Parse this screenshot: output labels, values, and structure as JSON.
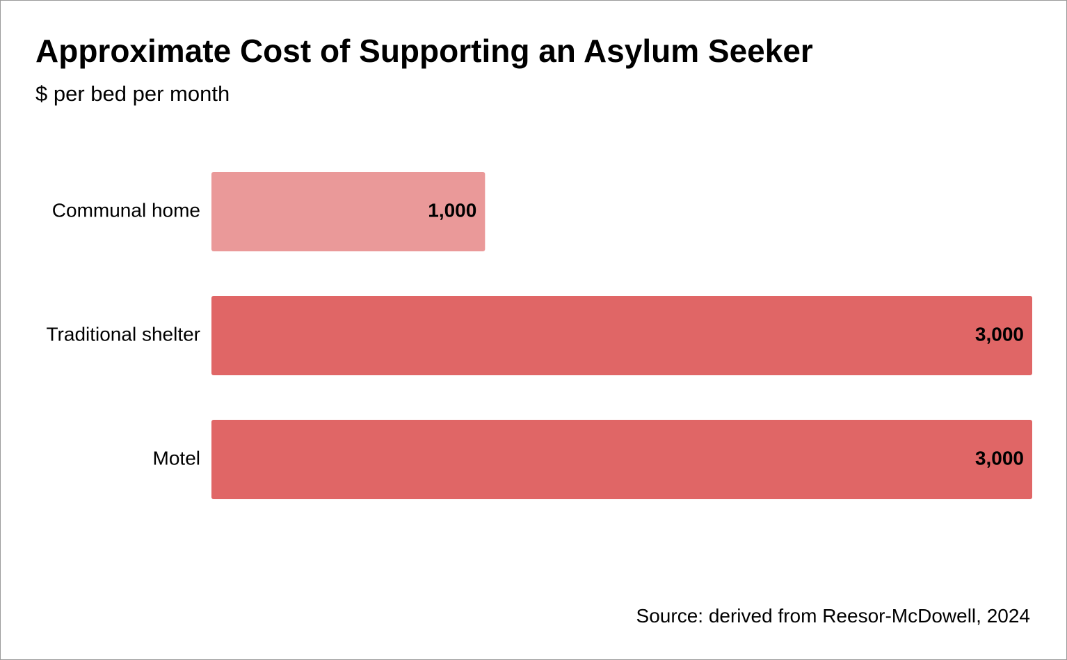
{
  "chart_data": {
    "type": "bar",
    "orientation": "horizontal",
    "title": "Approximate Cost of Supporting an Asylum Seeker",
    "subtitle": "$ per bed per month",
    "categories": [
      "Communal home",
      "Traditional shelter",
      "Motel"
    ],
    "values": [
      1000,
      3000,
      3000
    ],
    "value_labels": [
      "1,000",
      "3,000",
      "3,000"
    ],
    "bar_colors": [
      "#ea9999",
      "#e06666",
      "#e06666"
    ],
    "xlim": [
      0,
      3000
    ],
    "grid": false,
    "legend": "none",
    "source": "Source: derived from Reesor-McDowell, 2024"
  }
}
